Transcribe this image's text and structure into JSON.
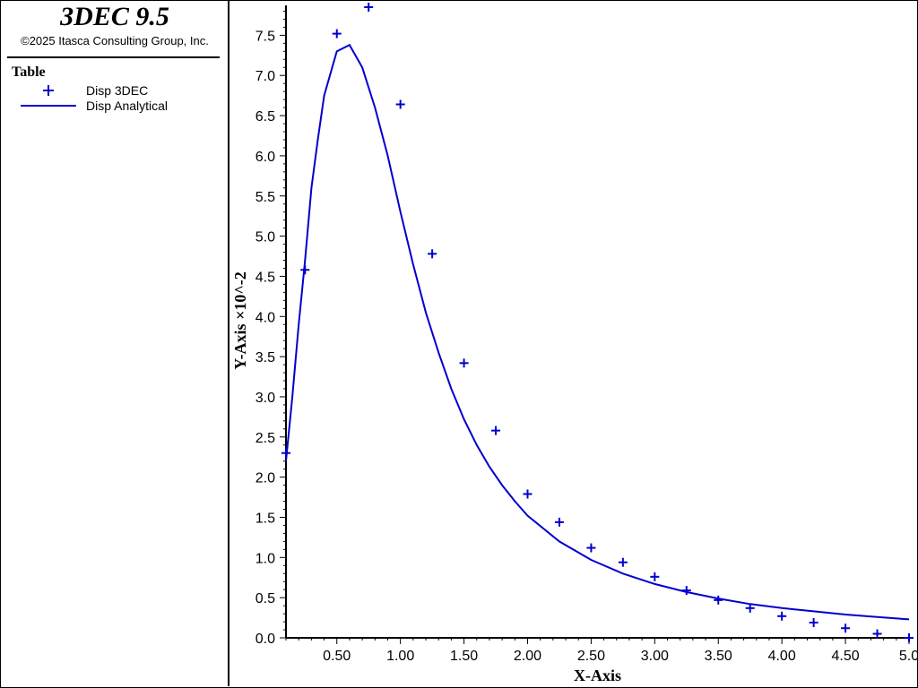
{
  "app": {
    "title": "3DEC 9.5",
    "copyright": "©2025 Itasca Consulting Group, Inc."
  },
  "legend": {
    "heading": "Table",
    "entries": [
      {
        "label": "Disp 3DEC",
        "marker": "plus",
        "color": "#0000cc"
      },
      {
        "label": "Disp Analytical",
        "marker": "line",
        "color": "#0000cc"
      }
    ]
  },
  "chart_data": {
    "type": "line",
    "xlabel": "X-Axis",
    "ylabel": "Y-Axis ×10^-2",
    "xlim": [
      0.1,
      5.0
    ],
    "ylim": [
      0.0,
      7.85
    ],
    "x_ticks": [
      0.5,
      1.0,
      1.5,
      2.0,
      2.5,
      3.0,
      3.5,
      4.0,
      4.5,
      5.0
    ],
    "x_tick_labels": [
      "0.50",
      "1.00",
      "1.50",
      "2.00",
      "2.50",
      "3.00",
      "3.50",
      "4.00",
      "4.50",
      "5.0"
    ],
    "y_ticks": [
      0.0,
      0.5,
      1.0,
      1.5,
      2.0,
      2.5,
      3.0,
      3.5,
      4.0,
      4.5,
      5.0,
      5.5,
      6.0,
      6.5,
      7.0,
      7.5
    ],
    "y_tick_labels": [
      "0.0",
      "0.5",
      "1.0",
      "1.5",
      "2.0",
      "2.5",
      "3.0",
      "3.5",
      "4.0",
      "4.5",
      "5.0",
      "5.5",
      "6.0",
      "6.5",
      "7.0",
      "7.5"
    ],
    "grid": false,
    "legend": "side-panel",
    "series": [
      {
        "name": "Disp 3DEC",
        "style": "markers",
        "color": "#0000cc",
        "x": [
          0.1,
          0.25,
          0.5,
          0.75,
          1.0,
          1.25,
          1.5,
          1.75,
          2.0,
          2.25,
          2.5,
          2.75,
          3.0,
          3.25,
          3.5,
          3.75,
          4.0,
          4.25,
          4.5,
          4.75,
          5.0
        ],
        "y": [
          2.3,
          4.58,
          7.52,
          7.85,
          6.64,
          4.78,
          3.42,
          2.58,
          1.79,
          1.44,
          1.12,
          0.94,
          0.76,
          0.59,
          0.47,
          0.37,
          0.27,
          0.19,
          0.12,
          0.05,
          0.0
        ]
      },
      {
        "name": "Disp Analytical",
        "style": "line",
        "color": "#0000cc",
        "x": [
          0.1,
          0.15,
          0.2,
          0.25,
          0.3,
          0.35,
          0.4,
          0.5,
          0.6,
          0.7,
          0.8,
          0.9,
          1.0,
          1.1,
          1.2,
          1.3,
          1.4,
          1.5,
          1.6,
          1.7,
          1.8,
          1.9,
          2.0,
          2.25,
          2.5,
          2.75,
          3.0,
          3.25,
          3.5,
          3.75,
          4.0,
          4.25,
          4.5,
          4.75,
          5.0
        ],
        "y": [
          2.2,
          3.0,
          3.9,
          4.7,
          5.6,
          6.2,
          6.75,
          7.3,
          7.38,
          7.1,
          6.6,
          6.0,
          5.3,
          4.65,
          4.05,
          3.55,
          3.1,
          2.72,
          2.4,
          2.13,
          1.9,
          1.7,
          1.52,
          1.2,
          0.97,
          0.8,
          0.67,
          0.57,
          0.49,
          0.42,
          0.37,
          0.33,
          0.29,
          0.26,
          0.23
        ]
      }
    ]
  }
}
